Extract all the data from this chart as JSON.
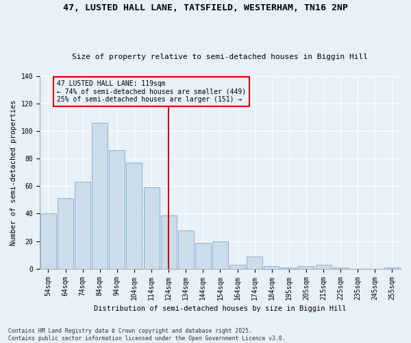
{
  "title1": "47, LUSTED HALL LANE, TATSFIELD, WESTERHAM, TN16 2NP",
  "title2": "Size of property relative to semi-detached houses in Biggin Hill",
  "xlabel": "Distribution of semi-detached houses by size in Biggin Hill",
  "ylabel": "Number of semi-detached properties",
  "categories": [
    "54sqm",
    "64sqm",
    "74sqm",
    "84sqm",
    "94sqm",
    "104sqm",
    "114sqm",
    "124sqm",
    "134sqm",
    "144sqm",
    "154sqm",
    "164sqm",
    "174sqm",
    "184sqm",
    "195sqm",
    "205sqm",
    "215sqm",
    "225sqm",
    "235sqm",
    "245sqm",
    "255sqm"
  ],
  "values": [
    40,
    51,
    63,
    106,
    86,
    77,
    59,
    39,
    28,
    19,
    20,
    3,
    9,
    2,
    1,
    2,
    3,
    1,
    0,
    0,
    1
  ],
  "bar_color": "#ccdcea",
  "bar_edge_color": "#7aaac8",
  "property_line_x": 7.0,
  "annotation_title": "47 LUSTED HALL LANE: 119sqm",
  "annotation_line1": "← 74% of semi-detached houses are smaller (449)",
  "annotation_line2": "25% of semi-detached houses are larger (151) →",
  "line_color": "#cc0000",
  "annotation_box_color": "#cc0000",
  "bg_color": "#e8f0f8",
  "grid_color": "#ffffff",
  "ylim": [
    0,
    140
  ],
  "yticks": [
    0,
    20,
    40,
    60,
    80,
    100,
    120,
    140
  ],
  "footnote1": "Contains HM Land Registry data © Crown copyright and database right 2025.",
  "footnote2": "Contains public sector information licensed under the Open Government Licence v3.0.",
  "title1_fontsize": 9.5,
  "title2_fontsize": 8.0,
  "tick_fontsize": 7,
  "ylabel_fontsize": 7.5,
  "xlabel_fontsize": 7.5
}
